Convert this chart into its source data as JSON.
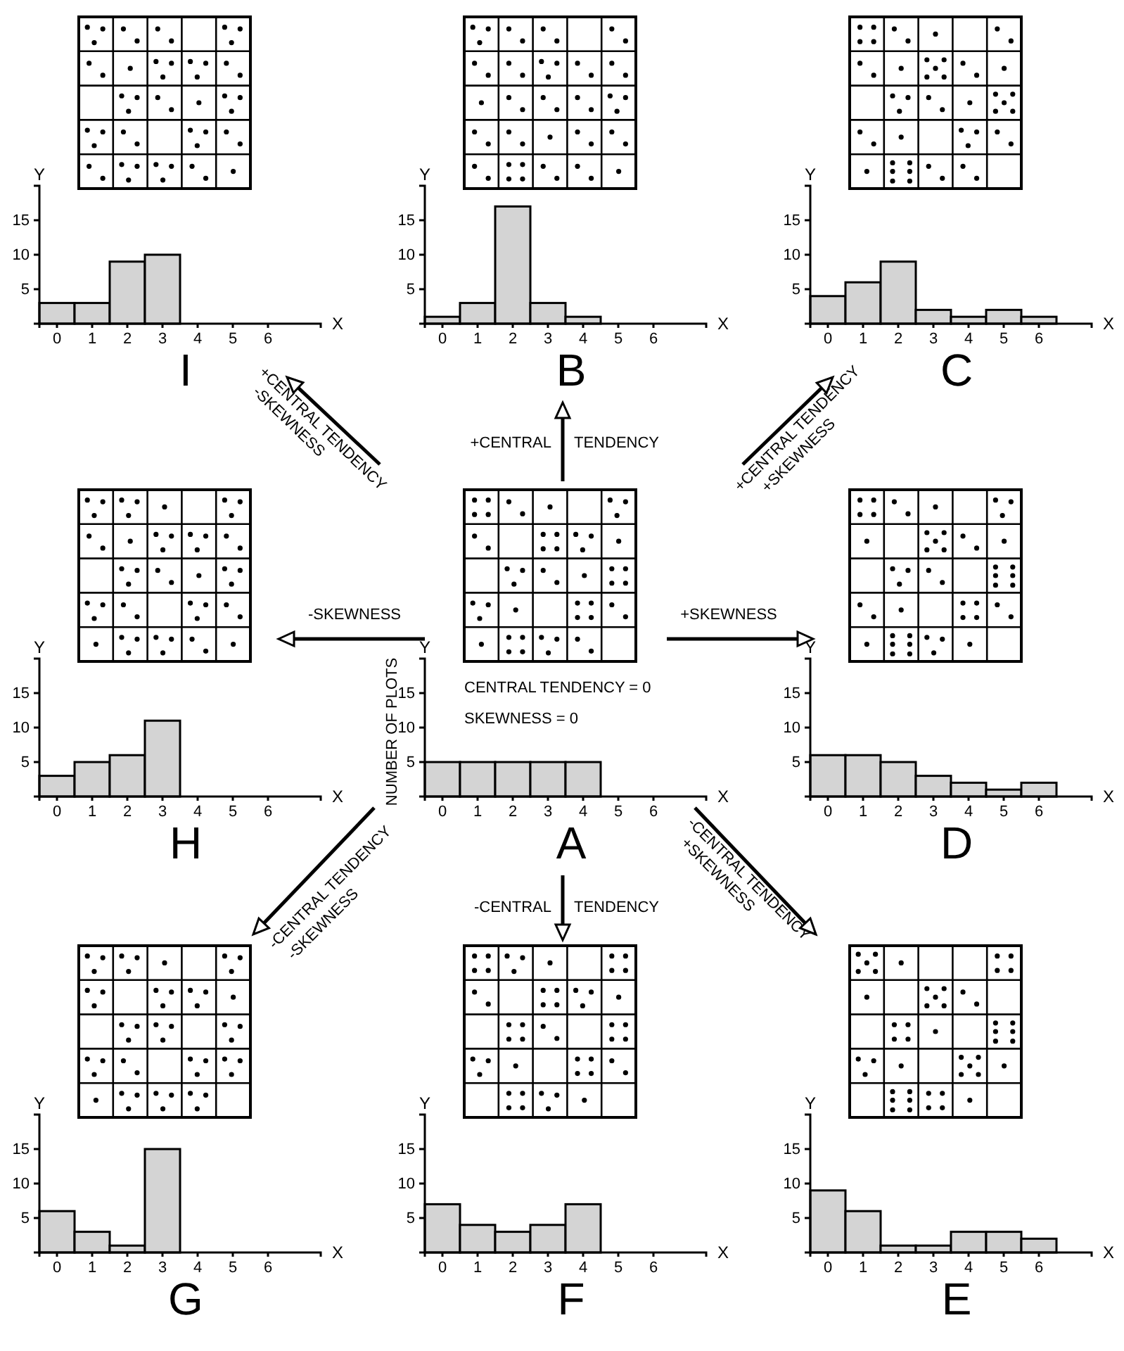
{
  "chart_data": [
    {
      "type": "histogram",
      "title": "I",
      "xlabel": "X",
      "ylabel": "Y",
      "bins": [
        -0.5,
        0.5,
        1.5,
        2.5,
        3.5
      ],
      "values": [
        3,
        3,
        9,
        10
      ],
      "xlim": [
        -0.5,
        7.5
      ],
      "ylim": [
        0,
        20
      ],
      "xticks": [
        0,
        1,
        2,
        3,
        4,
        5,
        6
      ],
      "yticks": [
        5,
        10,
        15
      ],
      "color": "#d4d4d4"
    },
    {
      "type": "histogram",
      "title": "B",
      "xlabel": "X",
      "ylabel": "Y",
      "bins": [
        -0.5,
        0.5,
        1.5,
        2.5,
        3.5,
        4.5
      ],
      "values": [
        1,
        3,
        17,
        3,
        1
      ],
      "xlim": [
        -0.5,
        7.5
      ],
      "ylim": [
        0,
        20
      ],
      "xticks": [
        0,
        1,
        2,
        3,
        4,
        5,
        6
      ],
      "yticks": [
        5,
        10,
        15
      ],
      "color": "#d4d4d4"
    },
    {
      "type": "histogram",
      "title": "C",
      "xlabel": "X",
      "ylabel": "Y",
      "bins": [
        -0.5,
        0.5,
        1.5,
        2.5,
        3.5,
        4.5,
        5.5,
        6.5
      ],
      "values": [
        4,
        6,
        9,
        2,
        1,
        2,
        1
      ],
      "xlim": [
        -0.5,
        7.5
      ],
      "ylim": [
        0,
        20
      ],
      "xticks": [
        0,
        1,
        2,
        3,
        4,
        5,
        6
      ],
      "yticks": [
        5,
        10,
        15
      ],
      "color": "#d4d4d4"
    },
    {
      "type": "histogram",
      "title": "H",
      "xlabel": "X",
      "ylabel": "Y",
      "bins": [
        -0.5,
        0.5,
        1.5,
        2.5,
        3.5
      ],
      "values": [
        3,
        5,
        6,
        11
      ],
      "xlim": [
        -0.5,
        7.5
      ],
      "ylim": [
        0,
        20
      ],
      "xticks": [
        0,
        1,
        2,
        3,
        4,
        5,
        6
      ],
      "yticks": [
        5,
        10,
        15
      ],
      "color": "#d4d4d4"
    },
    {
      "type": "histogram",
      "title": "A",
      "xlabel": "X",
      "ylabel": "Y",
      "bins": [
        -0.5,
        0.5,
        1.5,
        2.5,
        3.5,
        4.5
      ],
      "values": [
        5,
        5,
        5,
        5,
        5
      ],
      "xlim": [
        -0.5,
        7.5
      ],
      "ylim": [
        0,
        20
      ],
      "xticks": [
        0,
        1,
        2,
        3,
        4,
        5,
        6
      ],
      "yticks": [
        5,
        10,
        15
      ],
      "color": "#d4d4d4",
      "annotations": [
        "NUMBER OF PLOTS",
        "CENTRAL TENDENCY = 0",
        "SKEWNESS = 0",
        "+CENTRAL",
        "TENDENCY",
        "+CENTRAL TENDENCY",
        "-SKEWNESS",
        "+CENTRAL TENDENCY",
        "+SKEWNESS",
        "-SKEWNESS",
        "+SKEWNESS",
        "-CENTRAL TENDENCY",
        "-SKEWNESS",
        "-CENTRAL",
        "TENDENCY",
        "-CENTRAL TENDENCY",
        "+SKEWNESS"
      ]
    },
    {
      "type": "histogram",
      "title": "D",
      "xlabel": "X",
      "ylabel": "Y",
      "bins": [
        -0.5,
        0.5,
        1.5,
        2.5,
        3.5,
        4.5,
        5.5,
        6.5
      ],
      "values": [
        6,
        6,
        5,
        3,
        2,
        1,
        2
      ],
      "xlim": [
        -0.5,
        7.5
      ],
      "ylim": [
        0,
        20
      ],
      "xticks": [
        0,
        1,
        2,
        3,
        4,
        5,
        6
      ],
      "yticks": [
        5,
        10,
        15
      ],
      "color": "#d4d4d4"
    },
    {
      "type": "histogram",
      "title": "G",
      "xlabel": "X",
      "ylabel": "Y",
      "bins": [
        -0.5,
        0.5,
        1.5,
        2.5,
        3.5
      ],
      "values": [
        6,
        3,
        1,
        15
      ],
      "xlim": [
        -0.5,
        7.5
      ],
      "ylim": [
        0,
        20
      ],
      "xticks": [
        0,
        1,
        2,
        3,
        4,
        5,
        6
      ],
      "yticks": [
        5,
        10,
        15
      ],
      "color": "#d4d4d4"
    },
    {
      "type": "histogram",
      "title": "F",
      "xlabel": "X",
      "ylabel": "Y",
      "bins": [
        -0.5,
        0.5,
        1.5,
        2.5,
        3.5,
        4.5
      ],
      "values": [
        7,
        4,
        3,
        4,
        7
      ],
      "xlim": [
        -0.5,
        7.5
      ],
      "ylim": [
        0,
        20
      ],
      "xticks": [
        0,
        1,
        2,
        3,
        4,
        5,
        6
      ],
      "yticks": [
        5,
        10,
        15
      ],
      "color": "#d4d4d4"
    },
    {
      "type": "histogram",
      "title": "E",
      "xlabel": "X",
      "ylabel": "Y",
      "bins": [
        -0.5,
        0.5,
        1.5,
        2.5,
        3.5,
        4.5,
        5.5,
        6.5
      ],
      "values": [
        9,
        6,
        1,
        1,
        3,
        3,
        2
      ],
      "xlim": [
        -0.5,
        7.5
      ],
      "ylim": [
        0,
        20
      ],
      "xticks": [
        0,
        1,
        2,
        3,
        4,
        5,
        6
      ],
      "yticks": [
        5,
        10,
        15
      ],
      "color": "#d4d4d4"
    }
  ]
}
